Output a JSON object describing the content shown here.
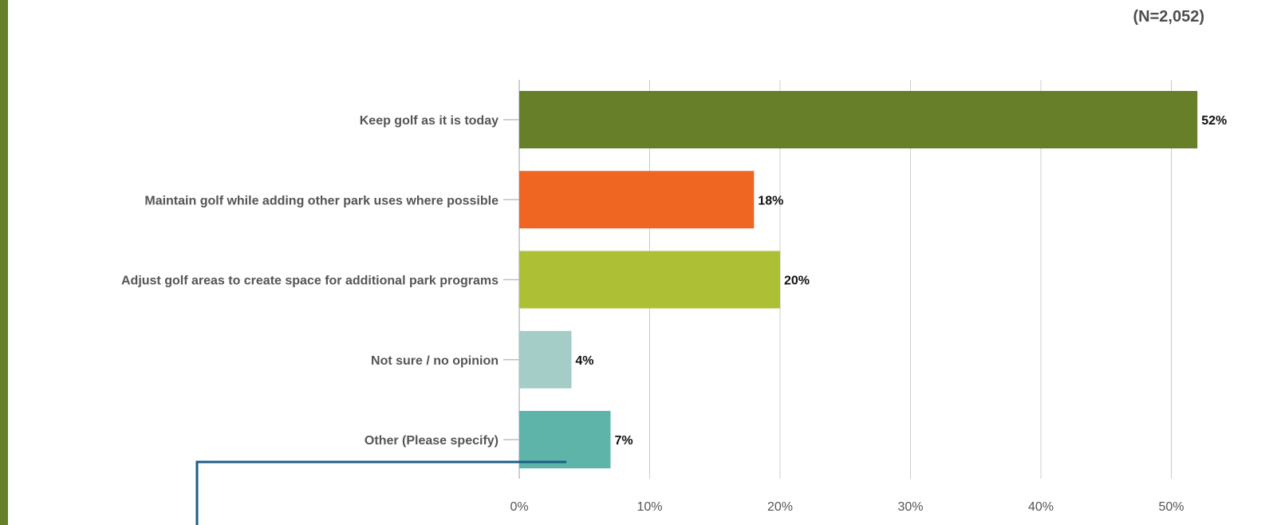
{
  "header": {
    "sample_size": "(N=2,052)"
  },
  "colors": {
    "side_strip": "#667f28",
    "grid": "#c9cdd2",
    "callout_line": "#1b5f86"
  },
  "chart_data": {
    "type": "bar",
    "orientation": "horizontal",
    "title": "",
    "xlabel": "",
    "ylabel": "",
    "categories": [
      "Keep golf as it is today",
      "Maintain golf while adding other park uses where possible",
      "Adjust golf areas to create space for additional park programs",
      "Not sure / no opinion",
      "Other (Please specify)"
    ],
    "values": [
      52,
      18,
      20,
      4,
      7
    ],
    "value_labels": [
      "52%",
      "18%",
      "20%",
      "4%",
      "7%"
    ],
    "bar_colors": [
      "#667f28",
      "#ef6522",
      "#adc035",
      "#a5cdc8",
      "#5fb4aa"
    ],
    "xlim": [
      0,
      53
    ],
    "xticks": [
      0,
      10,
      20,
      30,
      40,
      50
    ],
    "xtick_labels": [
      "0%",
      "10%",
      "20%",
      "30%",
      "40%",
      "50%"
    ],
    "grid": true,
    "legend": "none"
  }
}
